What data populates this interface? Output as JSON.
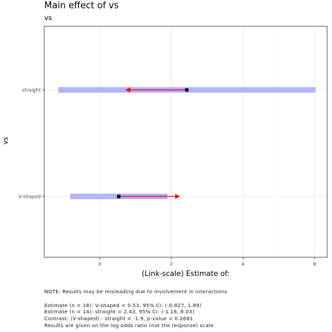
{
  "chart_data": {
    "type": "scatter",
    "title": "Main effect of vs",
    "subtitle": "vs",
    "xlabel": "(Link-scale) Estimate of:",
    "ylabel": "vs",
    "xlim": [
      -1.55,
      6.35
    ],
    "x_ticks": [
      0,
      2,
      4,
      6
    ],
    "x_tick_labels": [
      "0",
      "2",
      "4",
      "6"
    ],
    "categories": [
      "straight",
      "V-shaped"
    ],
    "series": [
      {
        "category": "straight",
        "estimate": 2.43,
        "ci_low": -1.16,
        "ci_high": 6.03,
        "comparison_arrow_end": 0.73
      },
      {
        "category": "V-shaped",
        "estimate": 0.53,
        "ci_low": -0.827,
        "ci_high": 1.89,
        "comparison_arrow_end": 2.23
      }
    ],
    "colors": {
      "ci_band": "#b3b3ff",
      "arrow": "#ff0000",
      "point": "#000000",
      "grid": "#ebebeb",
      "panel_border": "#333333"
    },
    "grid": true
  },
  "notes": {
    "warning": "NOTE: Results may be misleading due to involvement in interactions",
    "lines": [
      "Estimate (n = 18): V-shaped = 0.53, 95% CI: (-0.827, 1.89)",
      "Estimate (n = 14): straight = 2.43, 95% CI: (-1.16, 6.03)",
      "Contrast: (V-shaped) - straight = -1.9, p-value = 0.2681",
      "Results are given on the log odds ratio (not the response) scale."
    ]
  }
}
